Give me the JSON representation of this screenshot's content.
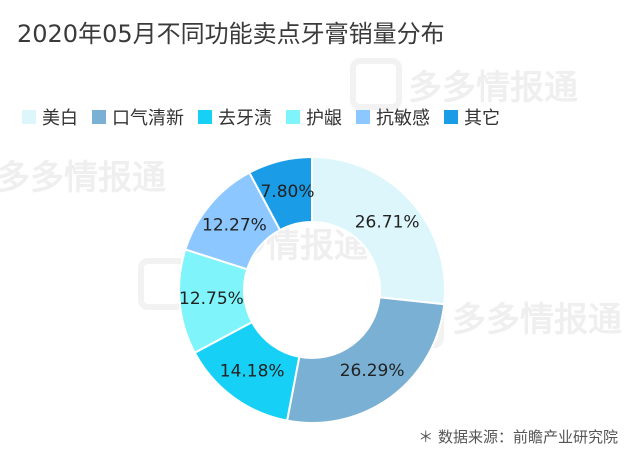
{
  "chart_data": {
    "type": "pie",
    "variant": "donut",
    "title": "2020年05月不同功能卖点牙膏销量分布",
    "categories": [
      "美白",
      "口气清新",
      "去牙渍",
      "护龈",
      "抗敏感",
      "其它"
    ],
    "values": [
      26.71,
      26.29,
      14.18,
      12.75,
      12.27,
      7.8
    ],
    "data_labels": [
      "26.71%",
      "26.29%",
      "14.18%",
      "12.75%",
      "12.27%",
      "7.80%"
    ],
    "colors": [
      "#dcf6fb",
      "#7ab0d4",
      "#16d0f5",
      "#7ff5fb",
      "#8cc8ff",
      "#1a9de6"
    ],
    "legend_position": "top"
  },
  "source": "＊ 数据来源：前瞻产业研究院",
  "watermark": "多多情报通"
}
